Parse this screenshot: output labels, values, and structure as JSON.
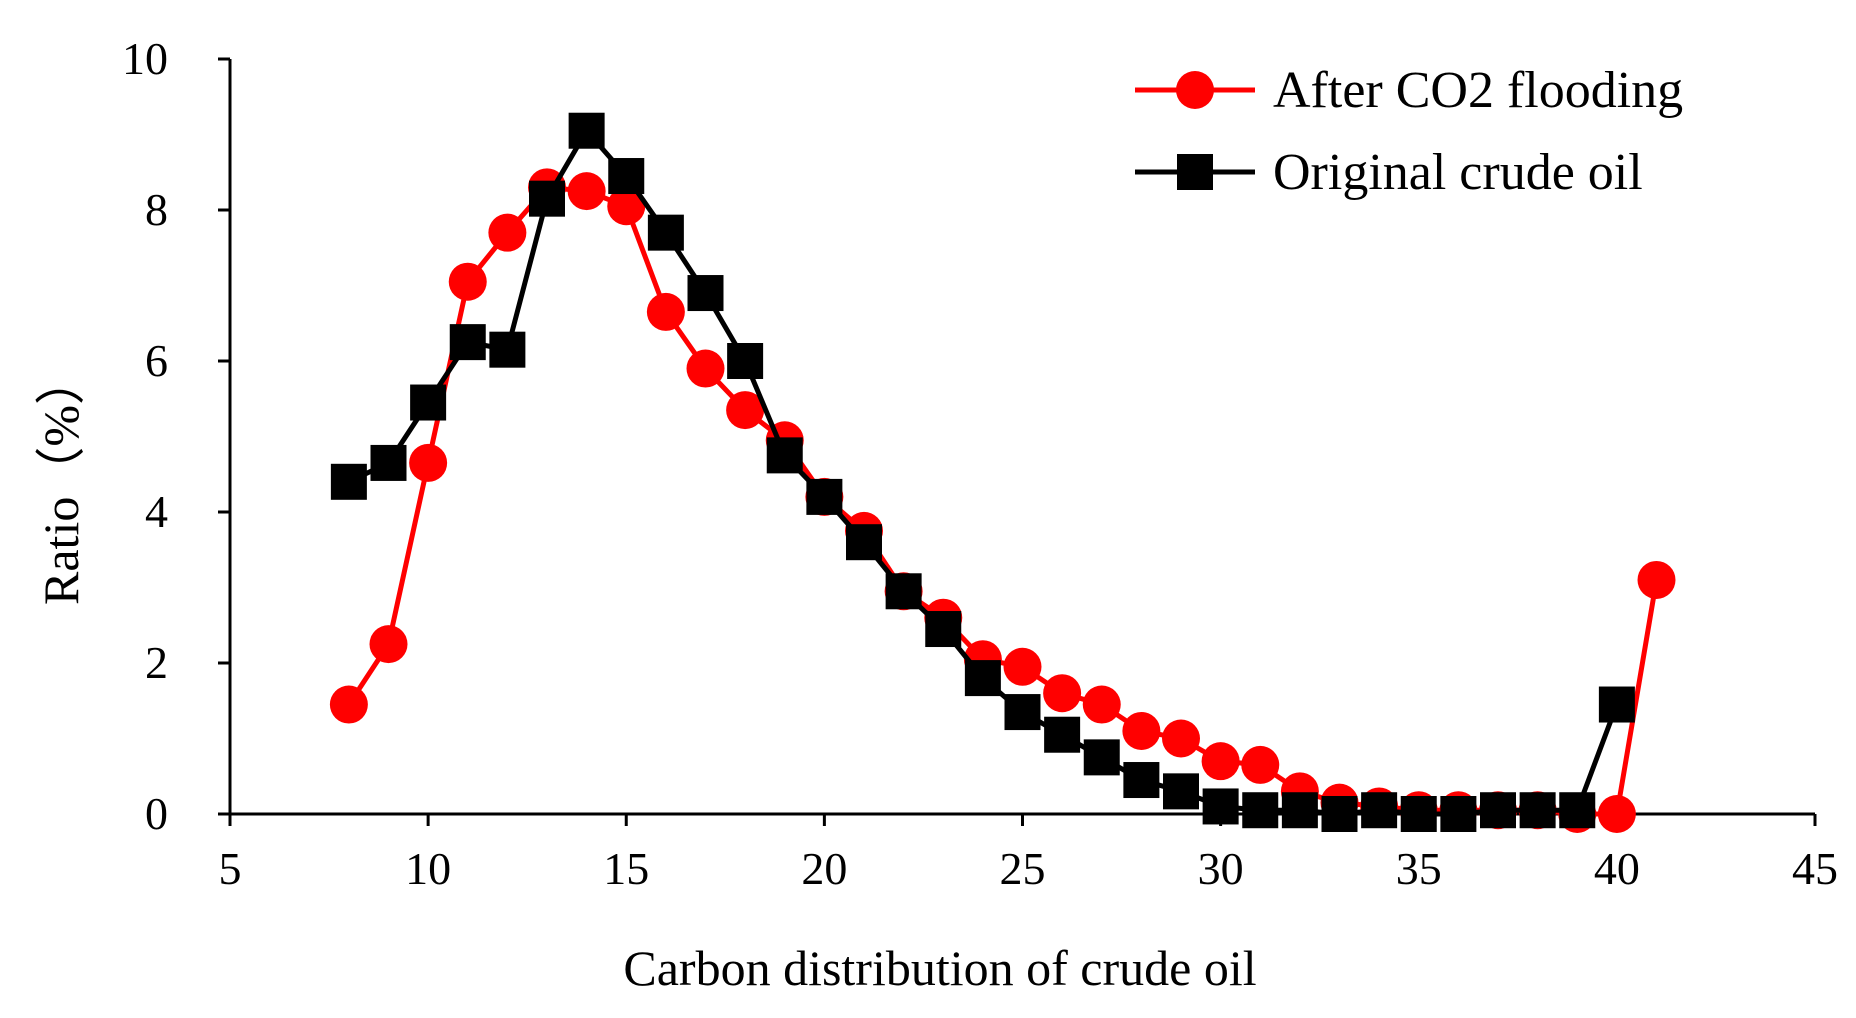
{
  "chart_data": {
    "type": "line",
    "title": "",
    "xlabel": "Carbon distribution of crude oil",
    "ylabel": "Ratio（%）",
    "xlim": [
      5,
      45
    ],
    "ylim": [
      0,
      10
    ],
    "xticks": [
      5,
      10,
      15,
      20,
      25,
      30,
      35,
      40,
      45
    ],
    "yticks": [
      0,
      2,
      4,
      6,
      8,
      10
    ],
    "grid": false,
    "legend_position": "top-right",
    "series": [
      {
        "name": "After CO2 flooding",
        "color": "#ff0000",
        "marker": "circle",
        "x": [
          8,
          9,
          10,
          11,
          12,
          13,
          14,
          15,
          16,
          17,
          18,
          19,
          20,
          21,
          22,
          23,
          24,
          25,
          26,
          27,
          28,
          29,
          30,
          31,
          32,
          33,
          34,
          35,
          36,
          37,
          38,
          39,
          40,
          41
        ],
        "values": [
          1.45,
          2.25,
          4.65,
          7.05,
          7.7,
          8.3,
          8.25,
          8.05,
          6.65,
          5.9,
          5.35,
          4.95,
          4.2,
          3.75,
          2.95,
          2.6,
          2.05,
          1.95,
          1.6,
          1.45,
          1.1,
          1.0,
          0.7,
          0.65,
          0.3,
          0.15,
          0.1,
          0.05,
          0.05,
          0.05,
          0.05,
          0.0,
          0.0,
          3.1
        ]
      },
      {
        "name": "Original crude oil",
        "color": "#000000",
        "marker": "square",
        "x": [
          8,
          9,
          10,
          11,
          12,
          13,
          14,
          15,
          16,
          17,
          18,
          19,
          20,
          21,
          22,
          23,
          24,
          25,
          26,
          27,
          28,
          29,
          30,
          31,
          32,
          33,
          34,
          35,
          36,
          37,
          38,
          39,
          40
        ],
        "values": [
          4.4,
          4.65,
          5.45,
          6.25,
          6.15,
          8.15,
          9.05,
          8.45,
          7.7,
          6.9,
          6.0,
          4.75,
          4.2,
          3.6,
          2.95,
          2.45,
          1.8,
          1.35,
          1.05,
          0.75,
          0.45,
          0.3,
          0.1,
          0.05,
          0.05,
          0.0,
          0.05,
          0.0,
          0.0,
          0.05,
          0.05,
          0.05,
          1.45
        ]
      }
    ]
  }
}
